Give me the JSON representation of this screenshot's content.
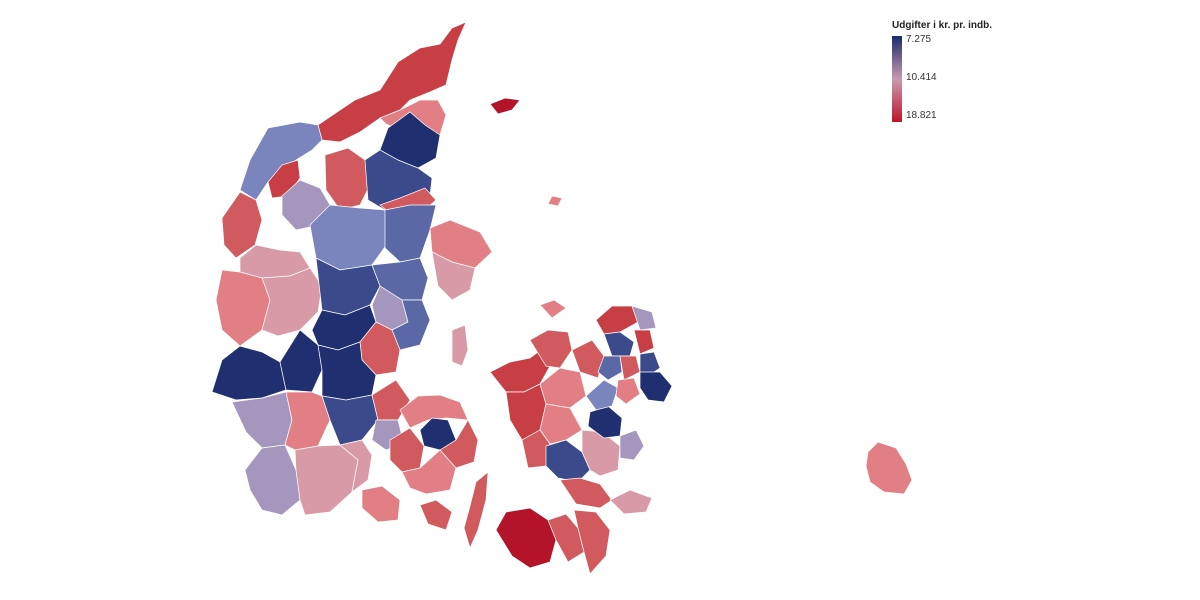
{
  "legend": {
    "title": "Udgifter i kr. pr. indb.",
    "labels": {
      "top": "7.275",
      "mid": "10.414",
      "bottom": "18.821"
    },
    "colors": {
      "low": "#1b2a6b",
      "mid": "#c79ab0",
      "high": "#c0152a"
    }
  },
  "palette": {
    "c1": "#1f2f70",
    "c2": "#3a4a8a",
    "c3": "#5a68a6",
    "c4": "#7a84bd",
    "c5": "#a596bd",
    "c6": "#d89aa6",
    "c7": "#e27f84",
    "c8": "#d05a5d",
    "c9": "#c73e44",
    "c10": "#b3142a"
  }
}
